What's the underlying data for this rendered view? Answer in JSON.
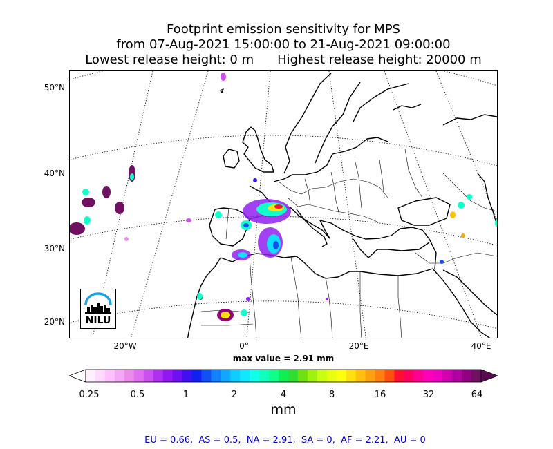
{
  "title": {
    "line1": "Footprint emission sensitivity for MPS",
    "line2": "from 07-Aug-2021 15:00:00 to 21-Aug-2021 09:00:00",
    "lowest_release": "Lowest release height: 0 m",
    "highest_release": "Highest release height: 20000 m"
  },
  "map": {
    "lat_labels": [
      "50°N",
      "40°N",
      "30°N",
      "20°N"
    ],
    "lon_labels": [
      "20°W",
      "0°",
      "20°E",
      "40°E"
    ],
    "logo_text": "NILU",
    "max_value": "max value = 2.91 mm"
  },
  "colorbar": {
    "ticks": [
      "0.25",
      "0.5",
      "1",
      "2",
      "4",
      "8",
      "16",
      "32",
      "64"
    ],
    "unit": "mm",
    "colors": [
      "#fff0ff",
      "#ffd9ff",
      "#ffc2ff",
      "#f5a8f5",
      "#eb8ceb",
      "#e070f0",
      "#cc50f0",
      "#b030f0",
      "#9018f0",
      "#7010f0",
      "#4010f0",
      "#1020f0",
      "#1050f5",
      "#1080ff",
      "#10a8ff",
      "#10ccff",
      "#10e8ff",
      "#10ffe8",
      "#10ffbb",
      "#10ff88",
      "#10ee55",
      "#30dd30",
      "#70e010",
      "#a0f010",
      "#c8ff10",
      "#e8ff10",
      "#ffff10",
      "#ffe010",
      "#ffc010",
      "#ffa010",
      "#ff8010",
      "#ff5010",
      "#ff1030",
      "#ff0060",
      "#ff0090",
      "#ff00b8",
      "#ee00c0",
      "#d000b0",
      "#b000a0",
      "#900080",
      "#701060"
    ]
  },
  "regions_summary": "EU = 0.66,  AS = 0.5,  NA = 2.91,  SA = 0,  AF = 2.21,  AU = 0"
}
